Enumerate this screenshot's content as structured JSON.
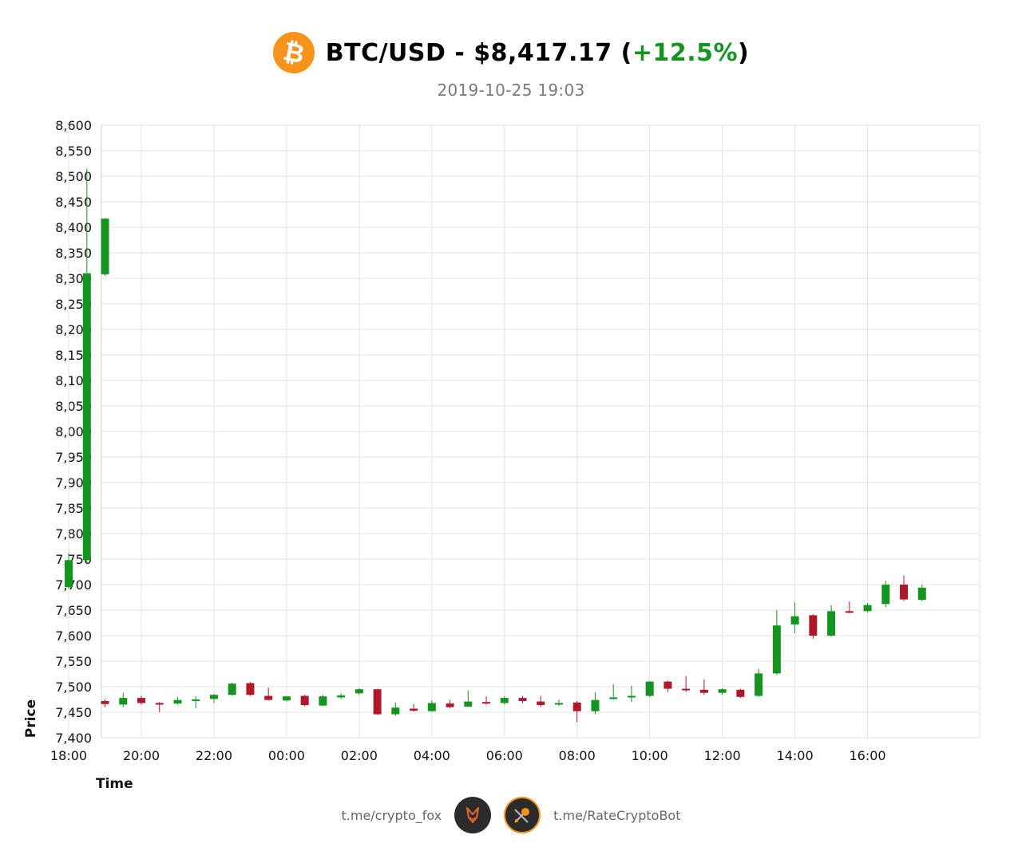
{
  "header": {
    "icon": "bitcoin-icon",
    "title_main": "BTC/USD - $8,417.17 (",
    "title_pct": "+12.5%",
    "title_close": ")",
    "subtitle": "2019-10-25 19:03"
  },
  "colors": {
    "up": "#14951f",
    "down": "#b0172b",
    "grid": "#e3e3e3",
    "bitcoin": "#f7931a"
  },
  "footer": {
    "left_link": "t.me/crypto_fox",
    "left_icon": "fox-icon",
    "right_icon": "bot-icon",
    "right_link": "t.me/RateCryptoBot"
  },
  "chart_data": {
    "type": "candlestick",
    "xlabel": "Time",
    "ylabel": "Price",
    "ylim": [
      7400,
      8600
    ],
    "y_ticks": [
      "8,600",
      "8,550",
      "8,500",
      "8,450",
      "8,400",
      "8,350",
      "8,300",
      "8,250",
      "8,200",
      "8,150",
      "8,100",
      "8,050",
      "8,000",
      "7,950",
      "7,900",
      "7,850",
      "7,800",
      "7,750",
      "7,700",
      "7,650",
      "7,600",
      "7,550",
      "7,500",
      "7,450",
      "7,400"
    ],
    "x_ticks": [
      "20:00",
      "22:00",
      "00:00",
      "02:00",
      "04:00",
      "06:00",
      "08:00",
      "10:00",
      "12:00",
      "14:00",
      "16:00",
      "18:00"
    ],
    "interval_minutes": 30,
    "grid": true,
    "candles": [
      {
        "time": "19:00",
        "open": 7472,
        "high": 7475,
        "low": 7460,
        "close": 7466
      },
      {
        "time": "19:30",
        "open": 7465,
        "high": 7488,
        "low": 7460,
        "close": 7478
      },
      {
        "time": "20:00",
        "open": 7478,
        "high": 7482,
        "low": 7465,
        "close": 7468
      },
      {
        "time": "20:30",
        "open": 7468,
        "high": 7470,
        "low": 7450,
        "close": 7466
      },
      {
        "time": "21:00",
        "open": 7467,
        "high": 7480,
        "low": 7465,
        "close": 7474
      },
      {
        "time": "21:30",
        "open": 7474,
        "high": 7481,
        "low": 7458,
        "close": 7475
      },
      {
        "time": "22:00",
        "open": 7476,
        "high": 7486,
        "low": 7468,
        "close": 7484
      },
      {
        "time": "22:30",
        "open": 7484,
        "high": 7508,
        "low": 7482,
        "close": 7506
      },
      {
        "time": "23:00",
        "open": 7507,
        "high": 7509,
        "low": 7482,
        "close": 7484
      },
      {
        "time": "23:30",
        "open": 7482,
        "high": 7498,
        "low": 7473,
        "close": 7474
      },
      {
        "time": "00:00",
        "open": 7473,
        "high": 7482,
        "low": 7471,
        "close": 7481
      },
      {
        "time": "00:30",
        "open": 7482,
        "high": 7484,
        "low": 7462,
        "close": 7464
      },
      {
        "time": "01:00",
        "open": 7463,
        "high": 7484,
        "low": 7462,
        "close": 7481
      },
      {
        "time": "01:30",
        "open": 7479,
        "high": 7487,
        "low": 7476,
        "close": 7483
      },
      {
        "time": "02:00",
        "open": 7487,
        "high": 7497,
        "low": 7484,
        "close": 7495
      },
      {
        "time": "02:30",
        "open": 7495,
        "high": 7496,
        "low": 7445,
        "close": 7446
      },
      {
        "time": "03:00",
        "open": 7446,
        "high": 7469,
        "low": 7443,
        "close": 7459
      },
      {
        "time": "03:30",
        "open": 7457,
        "high": 7466,
        "low": 7451,
        "close": 7453
      },
      {
        "time": "04:00",
        "open": 7452,
        "high": 7473,
        "low": 7451,
        "close": 7468
      },
      {
        "time": "04:30",
        "open": 7467,
        "high": 7474,
        "low": 7458,
        "close": 7460
      },
      {
        "time": "05:00",
        "open": 7461,
        "high": 7492,
        "low": 7460,
        "close": 7471
      },
      {
        "time": "05:30",
        "open": 7470,
        "high": 7481,
        "low": 7465,
        "close": 7468
      },
      {
        "time": "06:00",
        "open": 7468,
        "high": 7481,
        "low": 7465,
        "close": 7478
      },
      {
        "time": "06:30",
        "open": 7478,
        "high": 7482,
        "low": 7468,
        "close": 7472
      },
      {
        "time": "07:00",
        "open": 7471,
        "high": 7482,
        "low": 7460,
        "close": 7464
      },
      {
        "time": "07:30",
        "open": 7466,
        "high": 7475,
        "low": 7462,
        "close": 7468
      },
      {
        "time": "08:00",
        "open": 7469,
        "high": 7472,
        "low": 7431,
        "close": 7452
      },
      {
        "time": "08:30",
        "open": 7452,
        "high": 7489,
        "low": 7446,
        "close": 7474
      },
      {
        "time": "09:00",
        "open": 7476,
        "high": 7505,
        "low": 7475,
        "close": 7479
      },
      {
        "time": "09:30",
        "open": 7479,
        "high": 7502,
        "low": 7470,
        "close": 7482
      },
      {
        "time": "10:00",
        "open": 7482,
        "high": 7511,
        "low": 7480,
        "close": 7510
      },
      {
        "time": "10:30",
        "open": 7510,
        "high": 7512,
        "low": 7490,
        "close": 7496
      },
      {
        "time": "11:00",
        "open": 7496,
        "high": 7521,
        "low": 7490,
        "close": 7494
      },
      {
        "time": "11:30",
        "open": 7494,
        "high": 7514,
        "low": 7484,
        "close": 7488
      },
      {
        "time": "12:00",
        "open": 7488,
        "high": 7497,
        "low": 7484,
        "close": 7495
      },
      {
        "time": "12:30",
        "open": 7494,
        "high": 7496,
        "low": 7478,
        "close": 7480
      },
      {
        "time": "13:00",
        "open": 7482,
        "high": 7535,
        "low": 7480,
        "close": 7526
      },
      {
        "time": "13:30",
        "open": 7526,
        "high": 7650,
        "low": 7523,
        "close": 7620
      },
      {
        "time": "14:00",
        "open": 7622,
        "high": 7665,
        "low": 7605,
        "close": 7638
      },
      {
        "time": "14:30",
        "open": 7640,
        "high": 7642,
        "low": 7594,
        "close": 7600
      },
      {
        "time": "15:00",
        "open": 7600,
        "high": 7660,
        "low": 7598,
        "close": 7648
      },
      {
        "time": "15:30",
        "open": 7648,
        "high": 7667,
        "low": 7644,
        "close": 7646
      },
      {
        "time": "16:00",
        "open": 7648,
        "high": 7664,
        "low": 7646,
        "close": 7660
      },
      {
        "time": "16:30",
        "open": 7662,
        "high": 7708,
        "low": 7656,
        "close": 7700
      },
      {
        "time": "17:00",
        "open": 7700,
        "high": 7718,
        "low": 7668,
        "close": 7671
      },
      {
        "time": "17:30",
        "open": 7670,
        "high": 7700,
        "low": 7668,
        "close": 7694
      },
      {
        "time": "18:00",
        "open": 7695,
        "high": 7762,
        "low": 7692,
        "close": 7748
      },
      {
        "time": "18:30",
        "open": 7748,
        "high": 8515,
        "low": 7740,
        "close": 8310
      },
      {
        "time": "19:00",
        "open": 8308,
        "high": 8418,
        "low": 8305,
        "close": 8417
      }
    ]
  }
}
